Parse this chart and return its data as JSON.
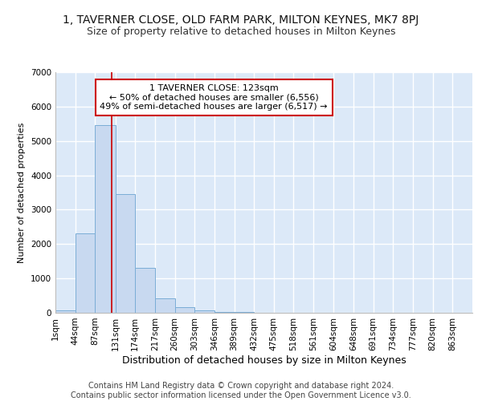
{
  "title": "1, TAVERNER CLOSE, OLD FARM PARK, MILTON KEYNES, MK7 8PJ",
  "subtitle": "Size of property relative to detached houses in Milton Keynes",
  "xlabel": "Distribution of detached houses by size in Milton Keynes",
  "ylabel": "Number of detached properties",
  "bin_labels": [
    "1sqm",
    "44sqm",
    "87sqm",
    "131sqm",
    "174sqm",
    "217sqm",
    "260sqm",
    "303sqm",
    "346sqm",
    "389sqm",
    "432sqm",
    "475sqm",
    "518sqm",
    "561sqm",
    "604sqm",
    "648sqm",
    "691sqm",
    "734sqm",
    "777sqm",
    "820sqm",
    "863sqm"
  ],
  "bin_edges": [
    1,
    44,
    87,
    131,
    174,
    217,
    260,
    303,
    346,
    389,
    432,
    475,
    518,
    561,
    604,
    648,
    691,
    734,
    777,
    820,
    863,
    906
  ],
  "bar_heights": [
    75,
    2300,
    5450,
    3450,
    1300,
    425,
    175,
    75,
    30,
    15,
    5,
    2,
    1,
    1,
    0,
    0,
    0,
    0,
    0,
    0,
    0
  ],
  "bar_color": "#c8d9f0",
  "bar_edge_color": "#7aadd6",
  "property_size": 123,
  "vline_color": "#cc0000",
  "annotation_text": "1 TAVERNER CLOSE: 123sqm\n← 50% of detached houses are smaller (6,556)\n49% of semi-detached houses are larger (6,517) →",
  "annotation_box_color": "#ffffff",
  "annotation_box_edge_color": "#cc0000",
  "ylim": [
    0,
    7000
  ],
  "yticks": [
    0,
    1000,
    2000,
    3000,
    4000,
    5000,
    6000,
    7000
  ],
  "footer_text": "Contains HM Land Registry data © Crown copyright and database right 2024.\nContains public sector information licensed under the Open Government Licence v3.0.",
  "plot_bg_color": "#dce9f8",
  "fig_bg_color": "#ffffff",
  "grid_color": "#ffffff",
  "title_fontsize": 10,
  "subtitle_fontsize": 9,
  "footer_fontsize": 7,
  "xlabel_fontsize": 9,
  "ylabel_fontsize": 8,
  "tick_fontsize": 7.5
}
